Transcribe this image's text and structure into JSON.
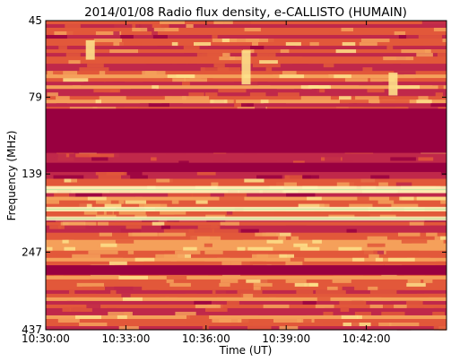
{
  "chart_data": {
    "type": "heatmap",
    "title": "2014/01/08  Radio flux density, e-CALLISTO (HUMAIN)",
    "xlabel": "Time (UT)",
    "ylabel": "Frequency (MHz)",
    "xlim": [
      "10:30:00",
      "10:45:00"
    ],
    "ylim_mhz": [
      45,
      437
    ],
    "x_ticks": [
      "10:30:00",
      "10:33:00",
      "10:36:00",
      "10:39:00",
      "10:42:00"
    ],
    "y_ticks": [
      45,
      79,
      139,
      247,
      437
    ],
    "y_scale": "log-like (frequency axis, low at top)",
    "colormap": [
      "#990040",
      "#c0284a",
      "#e2583a",
      "#f5a05a",
      "#fde08a",
      "#fff6c0",
      "#bde9a0",
      "#6cc7a6"
    ],
    "saturated_bands_mhz": [
      [
        86,
        119
      ],
      [
        128,
        137
      ],
      [
        272,
        292
      ]
    ],
    "bright_bands_mhz": [
      [
        152,
        160
      ],
      [
        177,
        183
      ],
      [
        190,
        196
      ]
    ],
    "bursts": [
      {
        "time": "10:31:40",
        "freq_range_mhz": [
          52,
          60
        ]
      },
      {
        "time": "10:37:30",
        "freq_range_mhz": [
          56,
          72
        ]
      },
      {
        "time": "10:43:00",
        "freq_range_mhz": [
          66,
          78
        ]
      }
    ]
  }
}
